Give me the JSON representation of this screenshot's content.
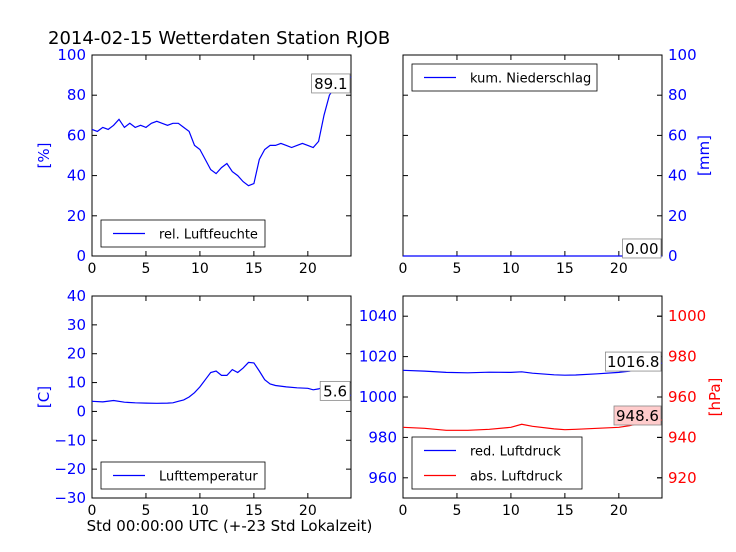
{
  "title": "2014-02-15 Wetterdaten Station RJOB",
  "colors": {
    "blue": "#0000ff",
    "red": "#ff0000",
    "black": "#000000",
    "label_bg": "#ffcccc"
  },
  "chart_data": [
    {
      "id": "humidity",
      "type": "line",
      "ylabel": "[%]",
      "xlim": [
        0,
        24
      ],
      "ylim": [
        0,
        100
      ],
      "xticks": [
        0,
        5,
        10,
        15,
        20
      ],
      "yticks": [
        0,
        20,
        40,
        60,
        80,
        100
      ],
      "legend": "lower-left",
      "grid": false,
      "annotation": "89.1",
      "series": [
        {
          "name": "rel. Luftfeuchte",
          "color": "#0000ff",
          "x": [
            0,
            0.5,
            1,
            1.5,
            2,
            2.5,
            3,
            3.5,
            4,
            4.5,
            5,
            5.5,
            6,
            6.5,
            7,
            7.5,
            8,
            8.5,
            9,
            9.5,
            10,
            10.5,
            11,
            11.5,
            12,
            12.5,
            13,
            13.5,
            14,
            14.5,
            15,
            15.5,
            16,
            16.5,
            17,
            17.5,
            18,
            18.5,
            19,
            19.5,
            20,
            20.5,
            21,
            21.5,
            22,
            22.5,
            23,
            23.5,
            24
          ],
          "y": [
            63,
            62,
            64,
            63,
            65,
            68,
            64,
            66,
            64,
            65,
            64,
            66,
            67,
            66,
            65,
            66,
            66,
            64,
            62,
            55,
            53,
            48,
            43,
            41,
            44,
            46,
            42,
            40,
            37,
            35,
            36,
            48,
            53,
            55,
            55,
            56,
            55,
            54,
            55,
            56,
            55,
            54,
            57,
            70,
            80,
            84,
            87,
            88,
            89.1
          ]
        }
      ]
    },
    {
      "id": "precipitation",
      "type": "line",
      "ylabel": "[mm]",
      "xlim": [
        0,
        24
      ],
      "ylim": [
        0,
        100
      ],
      "xticks": [
        0,
        5,
        10,
        15,
        20
      ],
      "yticks": [
        0,
        20,
        40,
        60,
        80,
        100
      ],
      "yaxis_side": "right",
      "legend": "top-left",
      "grid": false,
      "annotation": "0.00",
      "series": [
        {
          "name": "kum. Niederschlag",
          "color": "#0000ff",
          "x": [
            0,
            24
          ],
          "y": [
            0,
            0
          ]
        }
      ]
    },
    {
      "id": "temperature",
      "type": "line",
      "ylabel": "[C]",
      "xlabel": "Std 00:00:00 UTC (+-23 Std Lokalzeit)",
      "xlim": [
        0,
        24
      ],
      "ylim": [
        -30,
        40
      ],
      "xticks": [
        0,
        5,
        10,
        15,
        20
      ],
      "yticks": [
        -30,
        -20,
        -10,
        0,
        10,
        20,
        30,
        40
      ],
      "legend": "lower-left",
      "grid": false,
      "annotation": "5.6",
      "series": [
        {
          "name": "Lufttemperatur",
          "color": "#0000ff",
          "x": [
            0,
            1,
            2,
            3,
            4,
            5,
            6,
            7,
            7.5,
            8,
            8.5,
            9,
            9.5,
            10,
            10.5,
            11,
            11.5,
            12,
            12.5,
            13,
            13.5,
            14,
            14.5,
            15,
            15.5,
            16,
            16.5,
            17,
            18,
            19,
            20,
            20.5,
            21,
            21.5,
            22,
            23,
            24
          ],
          "y": [
            3.5,
            3.3,
            3.8,
            3.2,
            3.0,
            2.9,
            2.8,
            2.9,
            3.0,
            3.5,
            4.0,
            5.0,
            6.5,
            8.5,
            11.0,
            13.5,
            14.0,
            12.5,
            12.5,
            14.5,
            13.5,
            15.0,
            17.0,
            16.8,
            14.0,
            11.0,
            9.5,
            9.0,
            8.5,
            8.2,
            8.0,
            7.5,
            7.8,
            8.5,
            6.5,
            5.8,
            5.6
          ]
        }
      ]
    },
    {
      "id": "pressure",
      "type": "line",
      "xlim": [
        0,
        24
      ],
      "ylim": [
        950,
        1050
      ],
      "xticks": [
        0,
        5,
        10,
        15,
        20
      ],
      "yticks": [
        960,
        980,
        1000,
        1020,
        1040
      ],
      "ylabel_right": "[hPa]",
      "ylim_right": [
        910,
        1010
      ],
      "yticks_right": [
        920,
        940,
        960,
        980,
        1000
      ],
      "legend": "lower-left",
      "grid": false,
      "annotation": "1016.8",
      "annotation_right": "948.6",
      "series": [
        {
          "name": "red. Luftdruck",
          "color": "#0000ff",
          "axis": "left",
          "x": [
            0,
            2,
            4,
            6,
            8,
            10,
            11,
            12,
            14,
            15,
            16,
            18,
            20,
            21,
            22,
            23,
            24
          ],
          "y": [
            1013.2,
            1012.8,
            1012.2,
            1012.0,
            1012.3,
            1012.2,
            1012.5,
            1011.8,
            1011.0,
            1010.8,
            1010.9,
            1011.5,
            1012.2,
            1012.8,
            1014.5,
            1015.8,
            1016.8
          ]
        },
        {
          "name": "abs. Luftdruck",
          "color": "#ff0000",
          "axis": "right",
          "x": [
            0,
            2,
            4,
            6,
            8,
            10,
            11,
            12,
            14,
            15,
            16,
            18,
            20,
            21,
            22,
            23,
            24
          ],
          "y": [
            945.0,
            944.5,
            943.5,
            943.5,
            944.0,
            945.0,
            946.5,
            945.5,
            944.2,
            943.8,
            944.0,
            944.5,
            945.0,
            945.8,
            947.2,
            948.2,
            948.6
          ]
        }
      ]
    }
  ]
}
